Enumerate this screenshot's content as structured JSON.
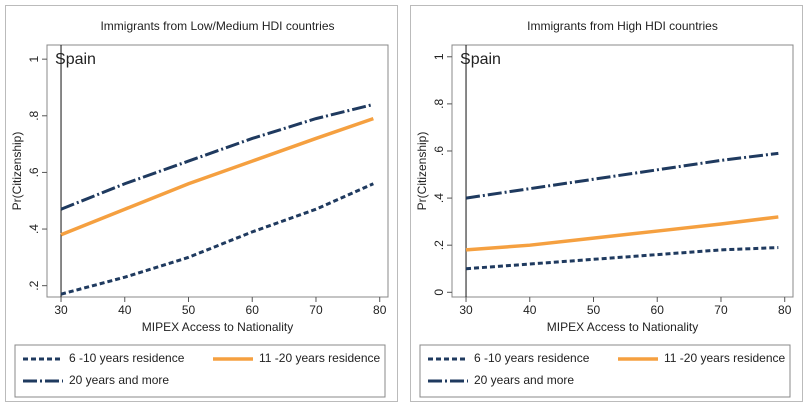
{
  "chart_data": [
    {
      "type": "line",
      "title": "Immigrants from Low/Medium HDI countries",
      "xlabel": "MIPEX Access to Nationality",
      "ylabel": "Pr(Citizenship)",
      "annotation": "Spain",
      "vline": 30,
      "x": [
        30,
        40,
        50,
        60,
        70,
        79
      ],
      "series": [
        {
          "name": "6 -10 years residence",
          "color": "#1f3a5f",
          "values": [
            0.17,
            0.23,
            0.3,
            0.39,
            0.47,
            0.56
          ]
        },
        {
          "name": "11 -20 years residence",
          "color": "#f5a040",
          "values": [
            0.38,
            0.47,
            0.56,
            0.64,
            0.72,
            0.79
          ]
        },
        {
          "name": "20 years and more",
          "color": "#1f3a5f",
          "values": [
            0.47,
            0.56,
            0.64,
            0.72,
            0.79,
            0.84
          ]
        }
      ],
      "xlim": [
        27.8,
        81.3
      ],
      "ylim": [
        0.16,
        1.05
      ],
      "xticks": [
        30,
        40,
        50,
        60,
        70,
        80
      ],
      "yticks": [
        {
          "value": 0.2,
          "label": ".2"
        },
        {
          "value": 0.4,
          "label": ".4"
        },
        {
          "value": 0.6,
          "label": ".6"
        },
        {
          "value": 0.8,
          "label": ".8"
        },
        1
      ]
    },
    {
      "type": "line",
      "title": "Immigrants from High HDI countries",
      "xlabel": "MIPEX Access to Nationality",
      "ylabel": "Pr(Citizenship)",
      "annotation": "Spain",
      "vline": 30,
      "x": [
        30,
        40,
        50,
        60,
        70,
        79
      ],
      "series": [
        {
          "name": "6 -10 years residence",
          "color": "#1f3a5f",
          "values": [
            0.1,
            0.12,
            0.14,
            0.16,
            0.18,
            0.19
          ]
        },
        {
          "name": "11 -20 years residence",
          "color": "#f5a040",
          "values": [
            0.18,
            0.2,
            0.23,
            0.26,
            0.29,
            0.32
          ]
        },
        {
          "name": "20 years and more",
          "color": "#1f3a5f",
          "values": [
            0.4,
            0.44,
            0.48,
            0.52,
            0.56,
            0.59
          ]
        }
      ],
      "xlim": [
        27.8,
        81.3
      ],
      "ylim": [
        -0.02,
        1.05
      ],
      "xticks": [
        30,
        40,
        50,
        60,
        70,
        80
      ],
      "yticks": [
        0,
        {
          "value": 0.2,
          "label": ".2"
        },
        {
          "value": 0.4,
          "label": ".4"
        },
        {
          "value": 0.6,
          "label": ".6"
        },
        {
          "value": 0.8,
          "label": ".8"
        },
        1
      ]
    }
  ]
}
